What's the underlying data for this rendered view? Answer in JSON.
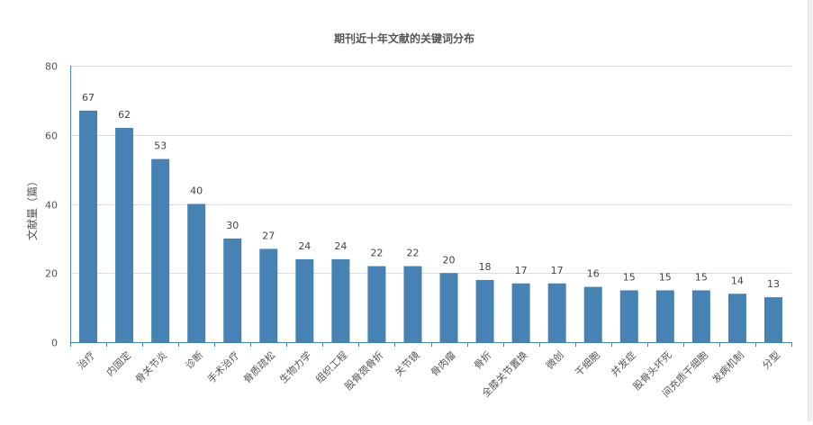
{
  "chart_data": {
    "type": "bar",
    "title": "期刊近十年文献的关键词分布",
    "ylabel": "文献量（篇）",
    "xlabel": "",
    "ylim": [
      0,
      80
    ],
    "yticks": [
      0,
      20,
      40,
      60,
      80
    ],
    "grid": true,
    "bar_color": "#4682b4",
    "categories": [
      "治疗",
      "内固定",
      "骨关节炎",
      "诊断",
      "手术治疗",
      "骨质疏松",
      "生物力学",
      "组织工程",
      "股骨颈骨折",
      "关节镜",
      "骨肉瘤",
      "骨折",
      "全膝关节置换",
      "微创",
      "干细胞",
      "并发症",
      "股骨头坏死",
      "间充质干细胞",
      "发病机制",
      "分型"
    ],
    "values": [
      67,
      62,
      53,
      40,
      30,
      27,
      24,
      24,
      22,
      22,
      20,
      18,
      17,
      17,
      16,
      15,
      15,
      15,
      14,
      13
    ]
  }
}
